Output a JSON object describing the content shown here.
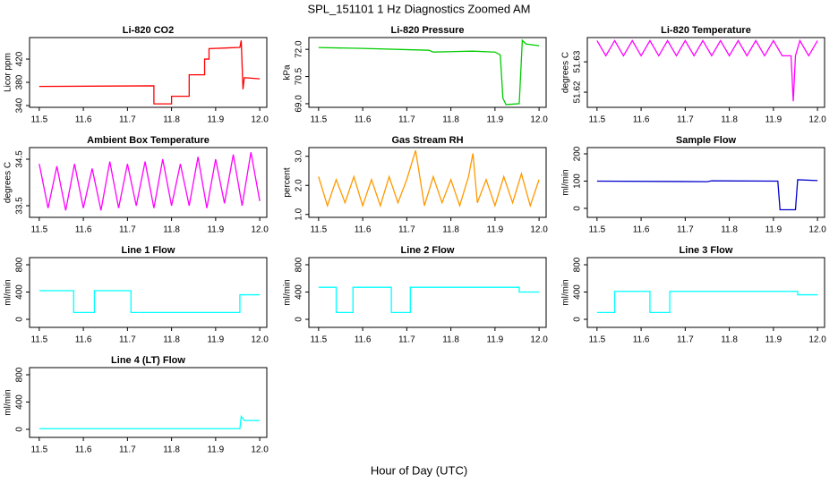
{
  "title": "SPL_151101  1 Hz Diagnostics Zoomed AM",
  "xlabel": "Hour of Day (UTC)",
  "chart_data": [
    {
      "type": "line",
      "title": "Li-820 CO2",
      "ylabel": "Licor ppm",
      "color": "#ff0000",
      "x": [
        11.5,
        11.76,
        11.76,
        11.8,
        11.8,
        11.84,
        11.84,
        11.875,
        11.875,
        11.885,
        11.885,
        11.955,
        11.958,
        11.962,
        11.965,
        12.0
      ],
      "values": [
        373,
        374,
        343,
        343,
        356,
        356,
        393,
        393,
        420,
        420,
        438,
        440,
        452,
        368,
        388,
        386
      ],
      "xlim": [
        11.478,
        12.016
      ],
      "ylim": [
        337,
        457
      ],
      "xticks": [
        11.5,
        11.6,
        11.7,
        11.8,
        11.9,
        {
          "value": 12,
          "label": "12.0"
        }
      ],
      "yticks": [
        340,
        380,
        420
      ]
    },
    {
      "type": "line",
      "title": "Li-820 Pressure",
      "ylabel": "kPa",
      "color": "#00cc00",
      "x": [
        11.5,
        11.6,
        11.75,
        11.76,
        11.85,
        11.9,
        11.912,
        11.918,
        11.925,
        11.955,
        11.962,
        11.97,
        12.0
      ],
      "values": [
        72.1,
        72.05,
        71.95,
        71.85,
        71.9,
        71.85,
        71.7,
        69.3,
        68.95,
        69.0,
        72.5,
        72.3,
        72.2
      ],
      "xlim": [
        11.478,
        12.016
      ],
      "ylim": [
        68.8,
        72.65
      ],
      "xticks": [
        11.5,
        11.6,
        11.7,
        11.8,
        11.9,
        {
          "value": 12,
          "label": "12.0"
        }
      ],
      "yticks": [
        {
          "value": 69,
          "label": "69.0"
        },
        70.5,
        {
          "value": 72,
          "label": "72.0"
        }
      ]
    },
    {
      "type": "line",
      "title": "Li-820 Temperature",
      "ylabel": "degrees C",
      "color": "#ff00ff",
      "x": [
        11.5,
        11.52,
        11.54,
        11.56,
        11.58,
        11.6,
        11.62,
        11.64,
        11.66,
        11.68,
        11.7,
        11.72,
        11.74,
        11.76,
        11.78,
        11.8,
        11.82,
        11.84,
        11.86,
        11.88,
        11.9,
        11.92,
        11.94,
        11.945,
        11.95,
        11.96,
        11.98,
        12.0
      ],
      "values": [
        51.637,
        51.632,
        51.637,
        51.632,
        51.637,
        51.632,
        51.637,
        51.632,
        51.637,
        51.632,
        51.637,
        51.632,
        51.637,
        51.632,
        51.637,
        51.632,
        51.637,
        51.632,
        51.637,
        51.632,
        51.637,
        51.632,
        51.632,
        51.617,
        51.632,
        51.637,
        51.632,
        51.637
      ],
      "xlim": [
        11.478,
        12.016
      ],
      "ylim": [
        51.615,
        51.638
      ],
      "xticks": [
        11.5,
        11.6,
        11.7,
        11.8,
        11.9,
        {
          "value": 12,
          "label": "12.0"
        }
      ],
      "yticks": [
        51.62,
        51.63
      ]
    },
    {
      "type": "line",
      "title": "Ambient Box Temperature",
      "ylabel": "degrees C",
      "color": "#ff00ff",
      "x": [
        11.5,
        11.52,
        11.54,
        11.56,
        11.58,
        11.6,
        11.62,
        11.64,
        11.66,
        11.68,
        11.7,
        11.72,
        11.74,
        11.76,
        11.78,
        11.8,
        11.82,
        11.84,
        11.86,
        11.88,
        11.9,
        11.92,
        11.94,
        11.96,
        11.98,
        12.0
      ],
      "values": [
        34.4,
        33.45,
        34.35,
        33.4,
        34.4,
        33.45,
        34.3,
        33.4,
        34.45,
        33.45,
        34.4,
        33.5,
        34.45,
        33.45,
        34.5,
        33.5,
        34.4,
        33.5,
        34.55,
        33.45,
        34.5,
        33.55,
        34.6,
        33.5,
        34.65,
        33.6
      ],
      "xlim": [
        11.478,
        12.016
      ],
      "ylim": [
        33.25,
        34.75
      ],
      "xticks": [
        11.5,
        11.6,
        11.7,
        11.8,
        11.9,
        {
          "value": 12,
          "label": "12.0"
        }
      ],
      "yticks": [
        33.5,
        34.5
      ]
    },
    {
      "type": "line",
      "title": "Gas Stream RH",
      "ylabel": "percent",
      "color": "#ff9900",
      "x": [
        11.5,
        11.52,
        11.54,
        11.56,
        11.58,
        11.6,
        11.62,
        11.64,
        11.66,
        11.68,
        11.7,
        11.72,
        11.74,
        11.76,
        11.78,
        11.8,
        11.82,
        11.84,
        11.85,
        11.86,
        11.88,
        11.9,
        11.92,
        11.94,
        11.96,
        11.98,
        12.0
      ],
      "values": [
        2.3,
        1.3,
        2.2,
        1.4,
        2.3,
        1.3,
        2.2,
        1.3,
        2.3,
        1.4,
        2.2,
        3.2,
        1.3,
        2.3,
        1.4,
        2.2,
        1.3,
        2.3,
        3.1,
        1.4,
        2.2,
        1.3,
        2.3,
        1.4,
        2.4,
        1.3,
        2.2
      ],
      "xlim": [
        11.478,
        12.016
      ],
      "ylim": [
        0.9,
        3.3
      ],
      "xticks": [
        11.5,
        11.6,
        11.7,
        11.8,
        11.9,
        {
          "value": 12,
          "label": "12.0"
        }
      ],
      "yticks": [
        {
          "value": 1,
          "label": "1.0"
        },
        {
          "value": 2,
          "label": "2.0"
        },
        {
          "value": 3,
          "label": "3.0"
        }
      ]
    },
    {
      "type": "line",
      "title": "Sample Flow",
      "ylabel": "ml/min",
      "color": "#0000cc",
      "x": [
        11.5,
        11.75,
        11.76,
        11.91,
        11.915,
        11.95,
        11.955,
        12.0
      ],
      "values": [
        100,
        98,
        101,
        100,
        -5,
        -5,
        105,
        102
      ],
      "xlim": [
        11.478,
        12.016
      ],
      "ylim": [
        -33,
        223
      ],
      "xticks": [
        11.5,
        11.6,
        11.7,
        11.8,
        11.9,
        {
          "value": 12,
          "label": "12.0"
        }
      ],
      "yticks": [
        0,
        100,
        200
      ]
    },
    {
      "type": "line",
      "title": "Line 1 Flow",
      "ylabel": "ml/min",
      "color": "#00ffff",
      "x": [
        11.5,
        11.578,
        11.578,
        11.625,
        11.625,
        11.708,
        11.708,
        11.955,
        11.955,
        12.0
      ],
      "values": [
        420,
        420,
        100,
        100,
        420,
        420,
        100,
        100,
        360,
        360
      ],
      "xlim": [
        11.478,
        12.016
      ],
      "ylim": [
        -118,
        905
      ],
      "xticks": [
        11.5,
        11.6,
        11.7,
        11.8,
        11.9,
        {
          "value": 12,
          "label": "12.0"
        }
      ],
      "yticks": [
        0,
        400,
        800
      ]
    },
    {
      "type": "line",
      "title": "Line 2 Flow",
      "ylabel": "ml/min",
      "color": "#00ffff",
      "x": [
        11.5,
        11.54,
        11.54,
        11.578,
        11.578,
        11.665,
        11.665,
        11.708,
        11.708,
        11.955,
        11.955,
        12.0
      ],
      "values": [
        470,
        470,
        100,
        100,
        470,
        470,
        100,
        100,
        470,
        470,
        400,
        400
      ],
      "xlim": [
        11.478,
        12.016
      ],
      "ylim": [
        -118,
        905
      ],
      "xticks": [
        11.5,
        11.6,
        11.7,
        11.8,
        11.9,
        {
          "value": 12,
          "label": "12.0"
        }
      ],
      "yticks": [
        0,
        400,
        800
      ]
    },
    {
      "type": "line",
      "title": "Line 3 Flow",
      "ylabel": "ml/min",
      "color": "#00ffff",
      "x": [
        11.5,
        11.54,
        11.54,
        11.62,
        11.62,
        11.665,
        11.665,
        11.955,
        11.955,
        12.0
      ],
      "values": [
        100,
        100,
        410,
        410,
        100,
        100,
        410,
        410,
        360,
        360
      ],
      "xlim": [
        11.478,
        12.016
      ],
      "ylim": [
        -118,
        905
      ],
      "xticks": [
        11.5,
        11.6,
        11.7,
        11.8,
        11.9,
        {
          "value": 12,
          "label": "12.0"
        }
      ],
      "yticks": [
        0,
        400,
        800
      ]
    },
    {
      "type": "line",
      "title": "Line 4 (LT) Flow",
      "ylabel": "ml/min",
      "color": "#00ffff",
      "x": [
        11.5,
        11.955,
        11.958,
        11.965,
        12.0
      ],
      "values": [
        10,
        10,
        190,
        130,
        130
      ],
      "xlim": [
        11.478,
        12.016
      ],
      "ylim": [
        -118,
        905
      ],
      "xticks": [
        11.5,
        11.6,
        11.7,
        11.8,
        11.9,
        {
          "value": 12,
          "label": "12.0"
        }
      ],
      "yticks": [
        0,
        400,
        800
      ]
    }
  ]
}
